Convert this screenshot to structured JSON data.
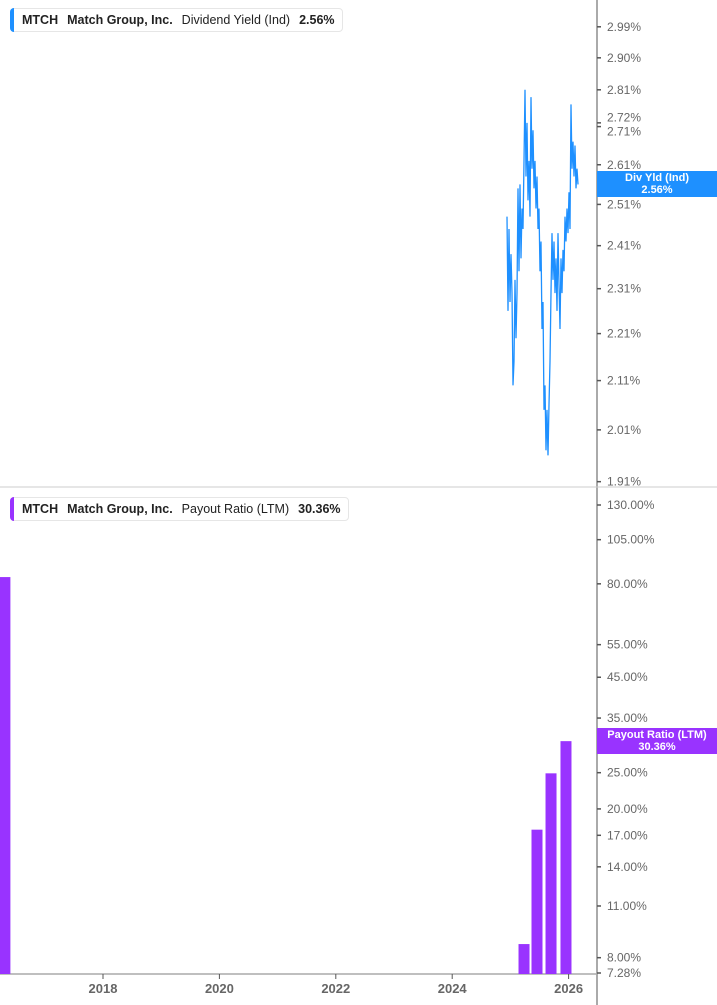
{
  "chart_data": [
    {
      "type": "line",
      "legend": {
        "ticker": "MTCH",
        "company": "Match Group, Inc.",
        "metric": "Dividend Yield (Ind)",
        "value": "2.56%"
      },
      "current_tag": {
        "label": "Div Yld (Ind)",
        "value": "2.56%"
      },
      "color": "#1e90ff",
      "yscale": "log",
      "ylim": [
        1.9,
        3.07
      ],
      "yticks": [
        "2.99%",
        "2.90%",
        "2.81%",
        "2.72%",
        "2.71%",
        "2.61%",
        "2.51%",
        "2.41%",
        "2.31%",
        "2.21%",
        "2.11%",
        "2.01%",
        "1.91%"
      ],
      "series": [
        {
          "x": [
            2024.942,
            2024.959,
            2024.976,
            2024.993,
            2025.01,
            2025.027,
            2025.045,
            2025.062,
            2025.079,
            2025.096,
            2025.113,
            2025.13,
            2025.148,
            2025.165,
            2025.182,
            2025.199,
            2025.216,
            2025.234,
            2025.251,
            2025.268,
            2025.285,
            2025.302,
            2025.32,
            2025.337,
            2025.354,
            2025.371,
            2025.388,
            2025.405,
            2025.423,
            2025.44,
            2025.457,
            2025.474,
            2025.491,
            2025.509,
            2025.526,
            2025.543,
            2025.56,
            2025.577,
            2025.595,
            2025.612,
            2025.629,
            2025.646,
            2025.663,
            2025.68,
            2025.698,
            2025.715,
            2025.732,
            2025.749,
            2025.766,
            2025.784,
            2025.801,
            2025.818,
            2025.835,
            2025.852,
            2025.869,
            2025.887,
            2025.904,
            2025.921,
            2025.938,
            2025.955,
            2025.973,
            2025.99,
            2026.007,
            2026.024,
            2026.041,
            2026.058,
            2026.076,
            2026.093,
            2026.11,
            2026.127,
            2026.144,
            2026.162
          ],
          "y": [
            2.48,
            2.26,
            2.45,
            2.28,
            2.39,
            2.3,
            2.1,
            2.15,
            2.33,
            2.2,
            2.3,
            2.55,
            2.35,
            2.56,
            2.38,
            2.5,
            2.45,
            2.62,
            2.81,
            2.58,
            2.72,
            2.52,
            2.62,
            2.48,
            2.79,
            2.6,
            2.7,
            2.55,
            2.62,
            2.5,
            2.58,
            2.45,
            2.5,
            2.35,
            2.42,
            2.22,
            2.28,
            2.05,
            2.1,
            1.97,
            2.05,
            1.96,
            2.06,
            2.15,
            2.3,
            2.44,
            2.33,
            2.42,
            2.3,
            2.38,
            2.26,
            2.44,
            2.32,
            2.22,
            2.38,
            2.3,
            2.4,
            2.35,
            2.48,
            2.42,
            2.5,
            2.44,
            2.54,
            2.45,
            2.77,
            2.6,
            2.67,
            2.58,
            2.66,
            2.55,
            2.6,
            2.56
          ]
        }
      ]
    },
    {
      "type": "bar",
      "legend": {
        "ticker": "MTCH",
        "company": "Match Group, Inc.",
        "metric": "Payout Ratio (LTM)",
        "value": "30.36%"
      },
      "current_tag": {
        "label": "Payout Ratio (LTM)",
        "value": "30.36%"
      },
      "color": "#9933ff",
      "yscale": "log",
      "ylim": [
        7.28,
        130
      ],
      "yticks": [
        "130.00%",
        "105.00%",
        "80.00%",
        "55.00%",
        "45.00%",
        "35.00%",
        "25.00%",
        "20.00%",
        "17.00%",
        "14.00%",
        "11.00%",
        "8.00%",
        "7.28%"
      ],
      "x": [
        2016.28,
        2025.234,
        2025.457,
        2025.698,
        2025.955
      ],
      "values": [
        83.4,
        8.7,
        17.6,
        24.9,
        30.36
      ],
      "xticks": [
        "2018",
        "2020",
        "2022",
        "2024",
        "2026"
      ]
    }
  ]
}
